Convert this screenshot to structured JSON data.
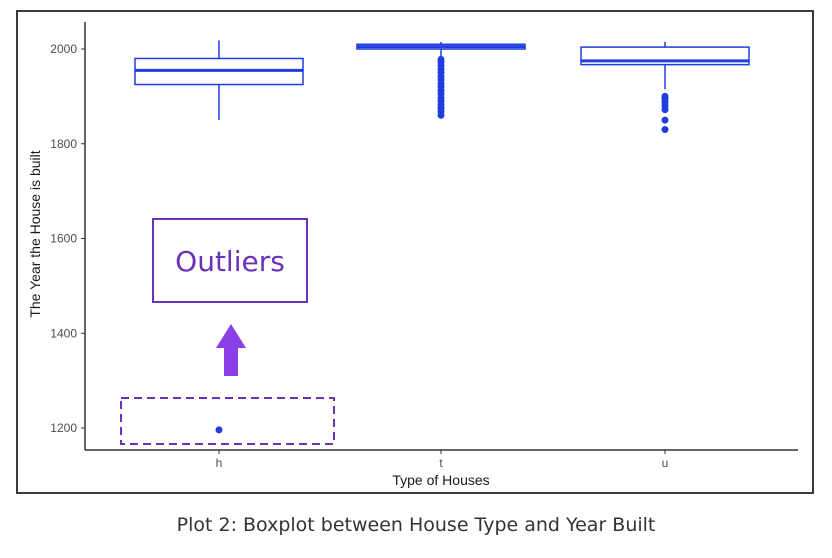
{
  "caption": "Plot 2: Boxplot between House Type and Year Built",
  "colors": {
    "box": "#1f3de0",
    "annotation": "#6a32b8",
    "arrow": "#8a3ee8",
    "axis": "#333333"
  },
  "annotation": {
    "label": "Outliers",
    "points_to": "outlier at h = 1196"
  },
  "chart_data": {
    "type": "boxplot",
    "title": "",
    "xlabel": "Type of Houses",
    "ylabel": "The Year the House is built",
    "categories": [
      "h",
      "t",
      "u"
    ],
    "yticks": [
      1200,
      1400,
      1600,
      1800,
      2000
    ],
    "ylim": [
      1160,
      2030
    ],
    "grid": false,
    "boxes": [
      {
        "category": "h",
        "whisker_low": 1850,
        "q1": 1925,
        "median": 1955,
        "q3": 1980,
        "whisker_high": 2018,
        "outliers": [
          1196
        ]
      },
      {
        "category": "t",
        "whisker_low": 1985,
        "q1": 2000,
        "median": 2005,
        "q3": 2010,
        "whisker_high": 2015,
        "outliers": [
          1860,
          1868,
          1875,
          1882,
          1890,
          1897,
          1905,
          1912,
          1920,
          1927,
          1935,
          1942,
          1950,
          1957,
          1965,
          1972,
          1978
        ]
      },
      {
        "category": "u",
        "whisker_low": 1915,
        "q1": 1967,
        "median": 1975,
        "q3": 2004,
        "whisker_high": 2015,
        "outliers": [
          1830,
          1850,
          1872,
          1880,
          1888,
          1895,
          1900
        ]
      }
    ]
  }
}
